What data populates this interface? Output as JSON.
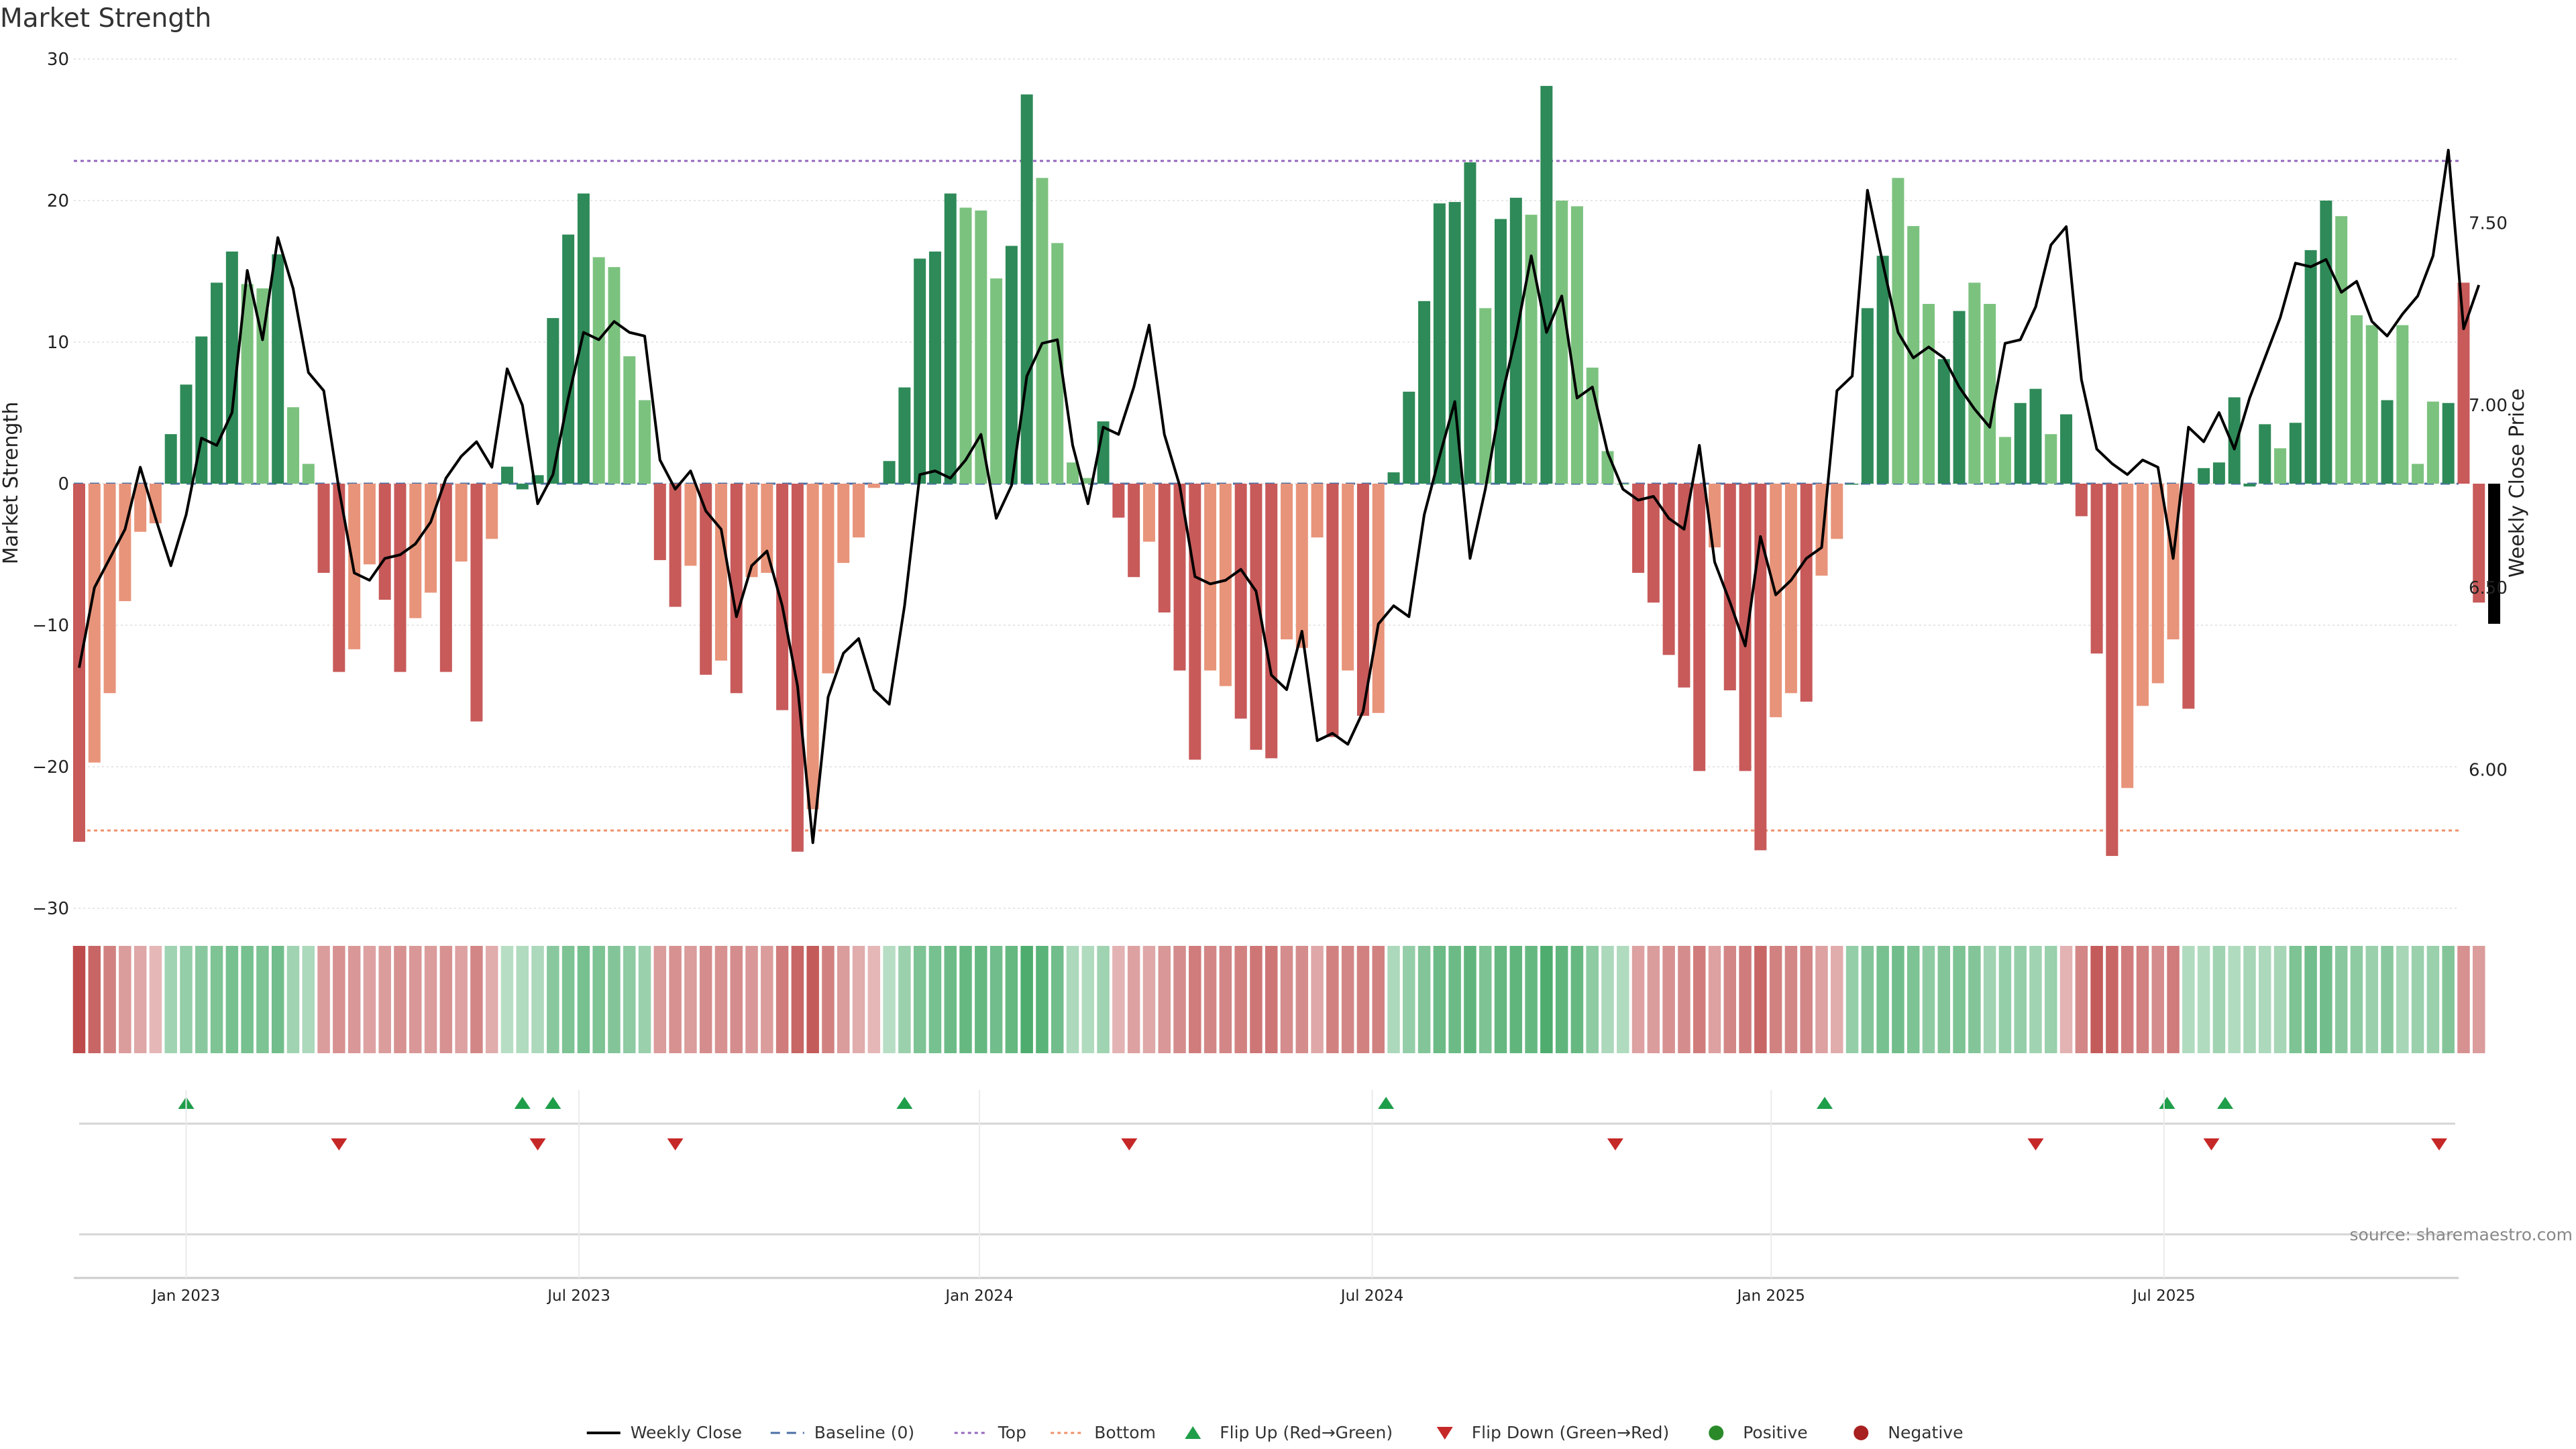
{
  "page": {
    "title": "Market Strength",
    "source": "source: sharemaestro.com"
  },
  "chart_data": {
    "type": "bar",
    "title": "Market Strength",
    "ylabel_left": "Market Strength",
    "ylabel_right": "Weekly Close Price",
    "ylim_left": [
      -30,
      30
    ],
    "ylim_right": [
      5.62,
      7.95
    ],
    "yticks_left": [
      "30",
      "20",
      "10",
      "0",
      "−10",
      "−20",
      "−30"
    ],
    "yticks_left_values": [
      30,
      20,
      10,
      0,
      -10,
      -20,
      -30
    ],
    "yticks_right": [
      "7.50",
      "7.00",
      "6.50",
      "6.00"
    ],
    "yticks_right_values": [
      7.5,
      7.0,
      6.5,
      6.0
    ],
    "x_range_weeks": [
      0,
      155
    ],
    "x_tick_labels": [
      {
        "label": "Jan 2023",
        "week": 7
      },
      {
        "label": "Jul 2023",
        "week": 32.7
      },
      {
        "label": "Jan 2024",
        "week": 58.9
      },
      {
        "label": "Jul 2024",
        "week": 84.6
      },
      {
        "label": "Jan 2025",
        "week": 110.7
      },
      {
        "label": "Jul 2025",
        "week": 136.4
      }
    ],
    "top_line": 22.8,
    "bottom_line": -24.5,
    "strength": [
      -25.3,
      -19.7,
      -14.8,
      -8.3,
      -3.4,
      -2.8,
      3.5,
      7,
      10.4,
      14.2,
      16.4,
      14.1,
      13.8,
      16.2,
      5.4,
      1.4,
      -6.3,
      -13.3,
      -11.7,
      -5.7,
      -8.2,
      -13.3,
      -9.5,
      -7.7,
      -13.3,
      -5.5,
      -16.8,
      -3.9,
      1.2,
      -0.4,
      0.6,
      11.7,
      17.6,
      20.5,
      16,
      15.3,
      9,
      5.9,
      -5.4,
      -8.7,
      -5.8,
      -13.5,
      -12.5,
      -14.8,
      -6.6,
      -6.3,
      -16,
      -26,
      -23,
      -13.4,
      -5.6,
      -3.8,
      -0.3,
      1.6,
      6.8,
      15.9,
      16.4,
      20.5,
      19.5,
      19.3,
      14.5,
      16.8,
      27.5,
      21.6,
      17,
      1.5,
      0.4,
      4.4,
      -2.4,
      -6.6,
      -4.1,
      -9.1,
      -13.2,
      -19.5,
      -13.2,
      -14.3,
      -16.6,
      -18.8,
      -19.4,
      -11,
      -11.6,
      -3.8,
      -17.9,
      -13.2,
      -16.4,
      -16.2,
      0.8,
      6.5,
      12.9,
      19.8,
      19.9,
      22.7,
      12.4,
      18.7,
      20.2,
      19,
      28.1,
      20,
      19.6,
      8.2,
      2.3,
      0,
      -6.3,
      -8.4,
      -12.1,
      -14.4,
      -20.3,
      -4.5,
      -14.6,
      -20.3,
      -25.9,
      -16.5,
      -14.8,
      -15.4,
      -6.5,
      -3.9,
      0,
      12.4,
      16.1,
      21.6,
      18.2,
      12.7,
      8.8,
      12.2,
      14.2,
      12.7,
      3.3,
      5.7,
      6.7,
      3.5,
      4.9,
      -2.3,
      -12,
      -26.3,
      -21.5,
      -15.7,
      -14.1,
      -11,
      -15.9,
      1.1,
      1.5,
      6.1,
      -0.2,
      4.2,
      2.5,
      4.3,
      16.5,
      20,
      18.9,
      11.9,
      11.2,
      5.9,
      11.2,
      1.4,
      5.8,
      5.7,
      14.2,
      -8.4,
      -9.9
    ],
    "bar_colors": [
      "#c85a5a",
      "#e8947a",
      "#e8947a",
      "#e8947a",
      "#e8947a",
      "#e8947a",
      "#2e8a58",
      "#2e8a58",
      "#2e8a58",
      "#2e8a58",
      "#2e8a58",
      "#7cc27f",
      "#7cc27f",
      "#2e8a58",
      "#7cc27f",
      "#7cc27f",
      "#c85a5a",
      "#c85a5a",
      "#e8947a",
      "#e8947a",
      "#c85a5a",
      "#c85a5a",
      "#e8947a",
      "#e8947a",
      "#c85a5a",
      "#e8947a",
      "#c85a5a",
      "#e8947a",
      "#2e8a58",
      "#2e8a58",
      "#2e8a58",
      "#2e8a58",
      "#2e8a58",
      "#2e8a58",
      "#7cc27f",
      "#7cc27f",
      "#7cc27f",
      "#7cc27f",
      "#c85a5a",
      "#c85a5a",
      "#e8947a",
      "#c85a5a",
      "#e8947a",
      "#c85a5a",
      "#e8947a",
      "#e8947a",
      "#c85a5a",
      "#c85a5a",
      "#e8947a",
      "#e8947a",
      "#e8947a",
      "#e8947a",
      "#e8947a",
      "#2e8a58",
      "#2e8a58",
      "#2e8a58",
      "#2e8a58",
      "#2e8a58",
      "#7cc27f",
      "#7cc27f",
      "#7cc27f",
      "#2e8a58",
      "#2e8a58",
      "#7cc27f",
      "#7cc27f",
      "#7cc27f",
      "#7cc27f",
      "#2e8a58",
      "#c85a5a",
      "#c85a5a",
      "#e8947a",
      "#c85a5a",
      "#c85a5a",
      "#c85a5a",
      "#e8947a",
      "#e8947a",
      "#c85a5a",
      "#c85a5a",
      "#c85a5a",
      "#e8947a",
      "#e8947a",
      "#e8947a",
      "#c85a5a",
      "#e8947a",
      "#c85a5a",
      "#e8947a",
      "#2e8a58",
      "#2e8a58",
      "#2e8a58",
      "#2e8a58",
      "#2e8a58",
      "#2e8a58",
      "#7cc27f",
      "#2e8a58",
      "#2e8a58",
      "#7cc27f",
      "#2e8a58",
      "#7cc27f",
      "#7cc27f",
      "#7cc27f",
      "#7cc27f",
      "#7cc27f",
      "#c85a5a",
      "#c85a5a",
      "#c85a5a",
      "#c85a5a",
      "#c85a5a",
      "#e8947a",
      "#c85a5a",
      "#c85a5a",
      "#c85a5a",
      "#e8947a",
      "#e8947a",
      "#c85a5a",
      "#e8947a",
      "#e8947a",
      "#2e8a58",
      "#2e8a58",
      "#2e8a58",
      "#7cc27f",
      "#7cc27f",
      "#7cc27f",
      "#2e8a58",
      "#2e8a58",
      "#7cc27f",
      "#7cc27f",
      "#7cc27f",
      "#2e8a58",
      "#2e8a58",
      "#7cc27f",
      "#2e8a58",
      "#c85a5a",
      "#c85a5a",
      "#c85a5a",
      "#e8947a",
      "#e8947a",
      "#e8947a",
      "#e8947a",
      "#c85a5a",
      "#2e8a58",
      "#2e8a58",
      "#2e8a58",
      "#2e8a58",
      "#2e8a58",
      "#7cc27f",
      "#2e8a58",
      "#2e8a58",
      "#2e8a58",
      "#7cc27f",
      "#7cc27f",
      "#7cc27f",
      "#2e8a58",
      "#7cc27f",
      "#7cc27f",
      "#7cc27f",
      "#2e8a58",
      "#c85a5a",
      "#c85a5a"
    ],
    "price": [
      6.28,
      6.5,
      6.58,
      6.66,
      6.83,
      6.69,
      6.56,
      6.7,
      6.91,
      6.89,
      6.98,
      7.37,
      7.18,
      7.46,
      7.32,
      7.09,
      7.04,
      6.77,
      6.54,
      6.52,
      6.58,
      6.59,
      6.62,
      6.68,
      6.8,
      6.86,
      6.9,
      6.83,
      7.1,
      7.0,
      6.73,
      6.81,
      7.02,
      7.2,
      7.18,
      7.23,
      7.2,
      7.19,
      6.85,
      6.77,
      6.82,
      6.71,
      6.66,
      6.42,
      6.56,
      6.6,
      6.45,
      6.23,
      5.8,
      6.2,
      6.32,
      6.36,
      6.22,
      6.18,
      6.45,
      6.81,
      6.82,
      6.8,
      6.85,
      6.92,
      6.69,
      6.78,
      7.08,
      7.17,
      7.18,
      6.89,
      6.73,
      6.94,
      6.92,
      7.05,
      7.22,
      6.92,
      6.78,
      6.53,
      6.51,
      6.52,
      6.55,
      6.49,
      6.26,
      6.22,
      6.38,
      6.08,
      6.1,
      6.07,
      6.16,
      6.4,
      6.45,
      6.42,
      6.7,
      6.86,
      7.01,
      6.58,
      6.77,
      7.01,
      7.19,
      7.41,
      7.2,
      7.3,
      7.02,
      7.05,
      6.87,
      6.77,
      6.74,
      6.75,
      6.69,
      6.66,
      6.89,
      6.57,
      6.46,
      6.34,
      6.64,
      6.48,
      6.52,
      6.58,
      6.61,
      7.04,
      7.08,
      7.59,
      7.39,
      7.2,
      7.13,
      7.16,
      7.13,
      7.05,
      6.99,
      6.94,
      7.17,
      7.18,
      7.27,
      7.44,
      7.49,
      7.07,
      6.88,
      6.84,
      6.81,
      6.85,
      6.83,
      6.58,
      6.94,
      6.9,
      6.98,
      6.88,
      7.02,
      7.13,
      7.24,
      7.39,
      7.38,
      7.4,
      7.31,
      7.34,
      7.23,
      7.19,
      7.25,
      7.3,
      7.41,
      7.7,
      7.21,
      7.33
    ],
    "shade_values": [
      -25,
      -20,
      -15,
      -10,
      -8,
      -5,
      8,
      10,
      12,
      14,
      15,
      15,
      14,
      16,
      8,
      6,
      -10,
      -12,
      -11,
      -9,
      -10,
      -12,
      -11,
      -10,
      -12,
      -9,
      -14,
      -7,
      4,
      5,
      6,
      12,
      14,
      15,
      14,
      13,
      11,
      9,
      -10,
      -12,
      -10,
      -13,
      -12,
      -13,
      -11,
      -10,
      -16,
      -20,
      -22,
      -15,
      -10,
      -7,
      -5,
      4,
      9,
      14,
      15,
      17,
      18,
      18,
      16,
      18,
      22,
      20,
      16,
      6,
      5,
      8,
      -6,
      -9,
      -8,
      -11,
      -13,
      -16,
      -14,
      -14,
      -15,
      -17,
      -17,
      -13,
      -13,
      -8,
      -15,
      -14,
      -15,
      -15,
      6,
      10,
      13,
      17,
      17,
      19,
      14,
      18,
      19,
      18,
      22,
      19,
      18,
      11,
      6,
      5,
      -9,
      -10,
      -12,
      -13,
      -16,
      -9,
      -14,
      -16,
      -20,
      -15,
      -14,
      -14,
      -9,
      -7,
      10,
      13,
      15,
      16,
      14,
      11,
      13,
      14,
      13,
      8,
      10,
      10,
      8,
      9,
      -6,
      -14,
      -22,
      -20,
      -16,
      -15,
      -13,
      -16,
      5,
      5,
      8,
      5,
      7,
      6,
      7,
      14,
      16,
      16,
      12,
      11,
      9,
      12,
      7,
      9,
      9,
      13,
      -12,
      -10
    ],
    "flip_up_weeks": [
      7,
      29,
      31,
      54,
      85.5,
      114.2,
      136.6,
      140.4
    ],
    "flip_down_weeks": [
      17,
      30,
      39,
      68.7,
      100.5,
      128,
      139.5,
      154.4
    ],
    "legend": [
      {
        "label": "Weekly Close",
        "type": "line",
        "color": "#000000"
      },
      {
        "label": "Baseline (0)",
        "type": "dash",
        "color": "#4a6fa5"
      },
      {
        "label": "Top",
        "type": "dot",
        "color": "#9467bd"
      },
      {
        "label": "Bottom",
        "type": "dot",
        "color": "#f0906a"
      },
      {
        "label": "Flip Up (Red→Green)",
        "type": "tri-up",
        "color": "#1f9e4a"
      },
      {
        "label": "Flip Down (Green→Red)",
        "type": "tri-down",
        "color": "#c62828"
      },
      {
        "label": "Positive",
        "type": "circle",
        "color": "#2a8a2a"
      },
      {
        "label": "Negative",
        "type": "circle",
        "color": "#a82020"
      }
    ]
  }
}
